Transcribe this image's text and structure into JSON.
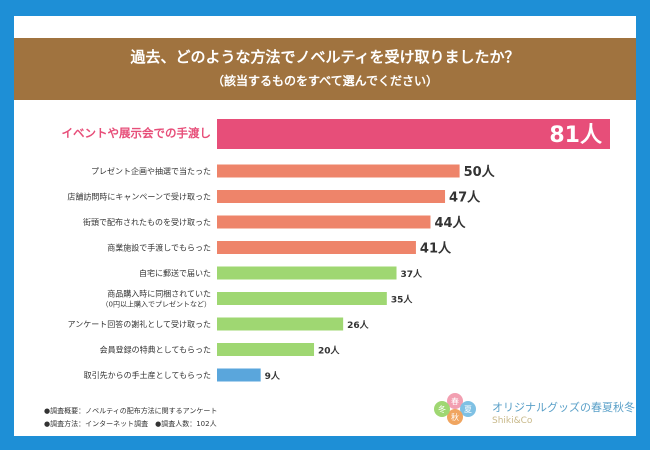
{
  "title": "過去、どのような方法でノベルティを受け取りましたか？",
  "subtitle": "（該当するものをすべて選んでください）",
  "colors": {
    "frame": "#1e8fd6",
    "header": "#a0733f",
    "highlight": "#e74e79",
    "salmon": "#ee846a",
    "green": "#9fd772",
    "blue": "#5aa6dc"
  },
  "chart_data": {
    "type": "bar",
    "orientation": "horizontal",
    "unit": "人",
    "xlim": [
      0,
      81
    ],
    "categories": [
      "イベントや展示会での手渡し",
      "プレゼント企画や抽選で当たった",
      "店舗訪問時にキャンペーンで受け取った",
      "街頭で配布されたものを受け取った",
      "商業施設で手渡しでもらった",
      "自宅に郵送で届いた",
      "商品購入時に同梱されていた",
      "アンケート回答の謝礼として受け取った",
      "会員登録の特典としてもらった",
      "取引先からの手土産としてもらった"
    ],
    "sublabels": [
      "",
      "",
      "",
      "",
      "",
      "",
      "（0円以上購入でプレゼントなど）",
      "",
      "",
      ""
    ],
    "values": [
      81,
      50,
      47,
      44,
      41,
      37,
      35,
      26,
      20,
      9
    ],
    "value_labels": [
      "81人",
      "50人",
      "47人",
      "44人",
      "41人",
      "37人",
      "35人",
      "26人",
      "20人",
      "9人"
    ],
    "groups": [
      "highlight",
      "salmon",
      "salmon",
      "salmon",
      "salmon",
      "green",
      "green",
      "green",
      "green",
      "blue"
    ]
  },
  "notes": [
    "●調査概要：ノベルティの配布方法に関するアンケート",
    "●調査方法：インターネット調査　●調査人数：102人"
  ],
  "logo": {
    "name": "オリジナルグッズの春夏秋冬",
    "sub": "Shiki&Co",
    "seasons": [
      "春",
      "夏",
      "秋",
      "冬"
    ]
  }
}
